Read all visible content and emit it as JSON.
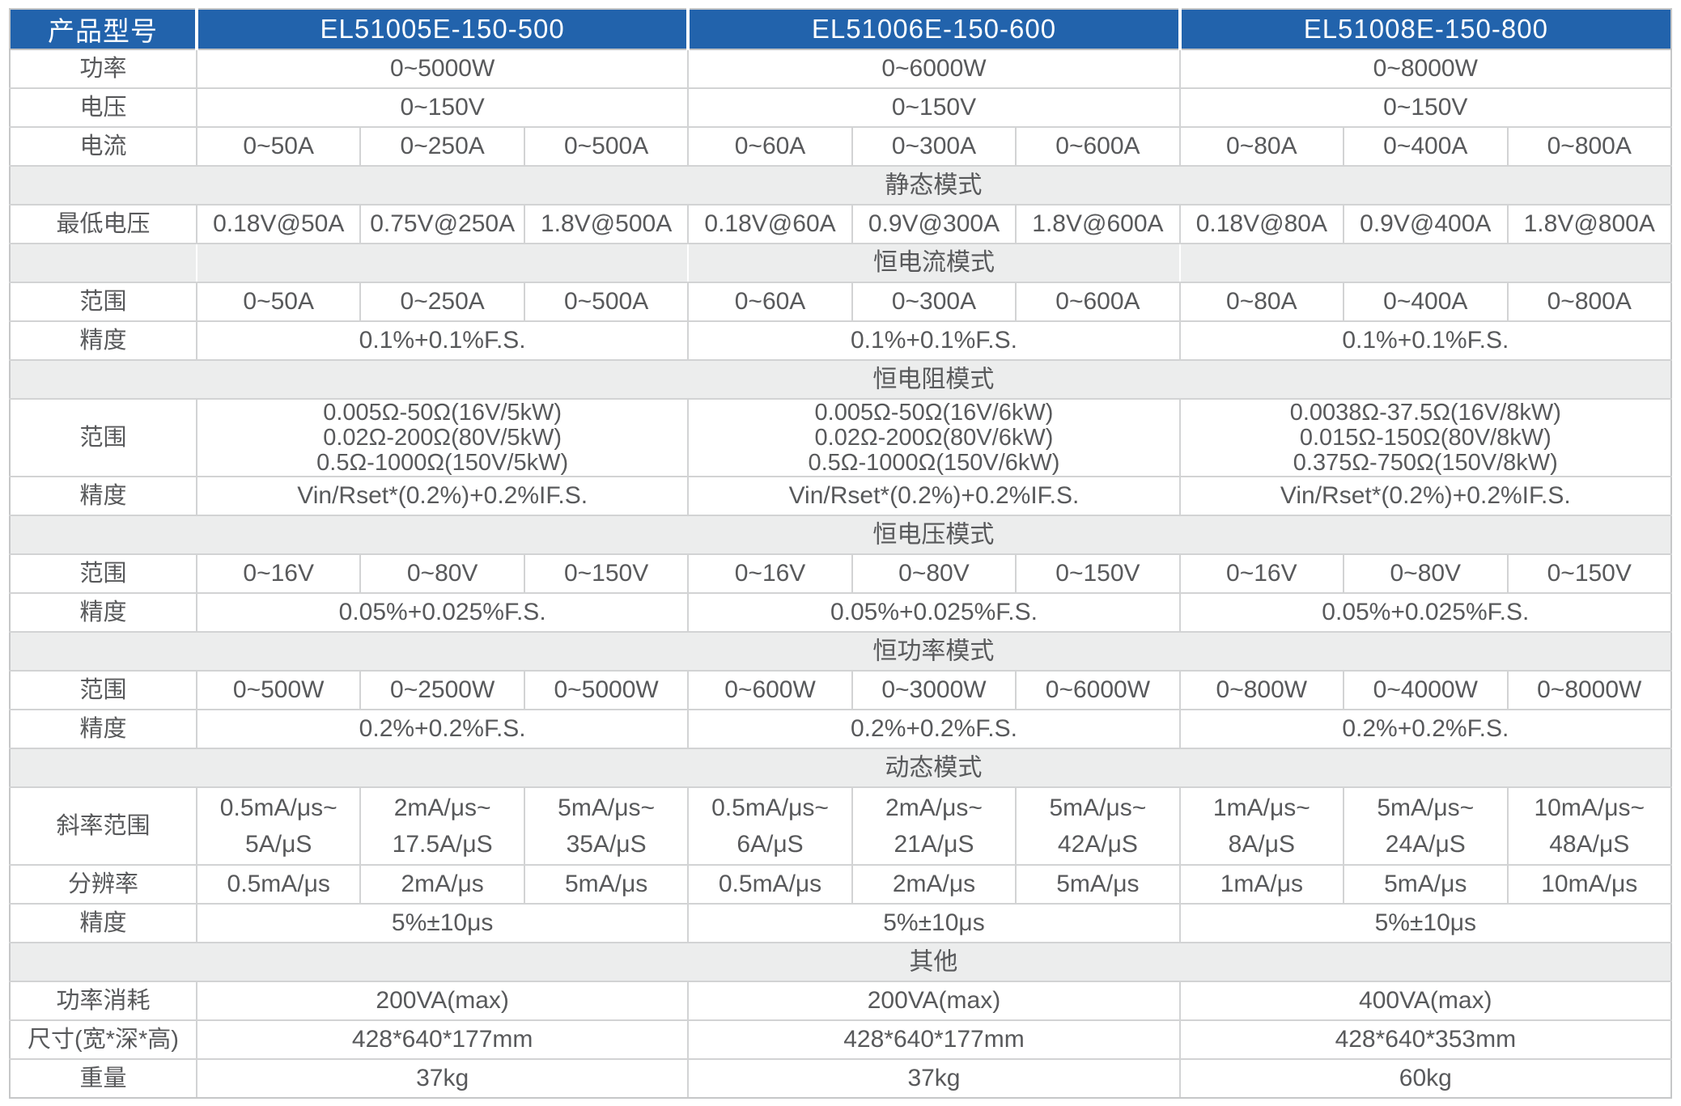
{
  "table": {
    "corner_label": "产品型号",
    "models": [
      "EL51005E-150-500",
      "EL51006E-150-600",
      "EL51008E-150-800"
    ],
    "colors": {
      "header_bg": "#2263AC",
      "header_text": "#FFFFFF",
      "section_bg": "#ECEDED",
      "body_text": "#58595B",
      "grid_line": "#D2D3D4"
    },
    "rows": [
      {
        "type": "spec",
        "label": "功率",
        "cells": [
          {
            "text": "0~5000W",
            "span": 3
          },
          {
            "text": "0~6000W",
            "span": 3
          },
          {
            "text": "0~8000W",
            "span": 3
          }
        ]
      },
      {
        "type": "spec",
        "label": "电压",
        "cells": [
          {
            "text": "0~150V",
            "span": 3
          },
          {
            "text": "0~150V",
            "span": 3
          },
          {
            "text": "0~150V",
            "span": 3
          }
        ]
      },
      {
        "type": "spec",
        "label": "电流",
        "cells": [
          {
            "text": "0~50A",
            "span": 1
          },
          {
            "text": "0~250A",
            "span": 1
          },
          {
            "text": "0~500A",
            "span": 1
          },
          {
            "text": "0~60A",
            "span": 1
          },
          {
            "text": "0~300A",
            "span": 1
          },
          {
            "text": "0~600A",
            "span": 1
          },
          {
            "text": "0~80A",
            "span": 1
          },
          {
            "text": "0~400A",
            "span": 1
          },
          {
            "text": "0~800A",
            "span": 1
          }
        ]
      },
      {
        "type": "section",
        "title": "静态模式",
        "merged": true
      },
      {
        "type": "spec",
        "label": "最低电压",
        "cells": [
          {
            "text": "0.18V@50A",
            "span": 1
          },
          {
            "text": "0.75V@250A",
            "span": 1
          },
          {
            "text": "1.8V@500A",
            "span": 1
          },
          {
            "text": "0.18V@60A",
            "span": 1
          },
          {
            "text": "0.9V@300A",
            "span": 1
          },
          {
            "text": "1.8V@600A",
            "span": 1
          },
          {
            "text": "0.18V@80A",
            "span": 1
          },
          {
            "text": "0.9V@400A",
            "span": 1
          },
          {
            "text": "1.8V@800A",
            "span": 1
          }
        ]
      },
      {
        "type": "section",
        "title": "恒电流模式",
        "merged": false
      },
      {
        "type": "spec",
        "label": "范围",
        "cells": [
          {
            "text": "0~50A",
            "span": 1
          },
          {
            "text": "0~250A",
            "span": 1
          },
          {
            "text": "0~500A",
            "span": 1
          },
          {
            "text": "0~60A",
            "span": 1
          },
          {
            "text": "0~300A",
            "span": 1
          },
          {
            "text": "0~600A",
            "span": 1
          },
          {
            "text": "0~80A",
            "span": 1
          },
          {
            "text": "0~400A",
            "span": 1
          },
          {
            "text": "0~800A",
            "span": 1
          }
        ]
      },
      {
        "type": "spec",
        "label": "精度",
        "cells": [
          {
            "text": "0.1%+0.1%F.S.",
            "span": 3
          },
          {
            "text": "0.1%+0.1%F.S.",
            "span": 3
          },
          {
            "text": "0.1%+0.1%F.S.",
            "span": 3
          }
        ]
      },
      {
        "type": "section",
        "title": "恒电阻模式",
        "merged": true
      },
      {
        "type": "spec",
        "label": "范围",
        "size": "l3",
        "cells": [
          {
            "text": "0.005Ω-50Ω(16V/5kW)\n0.02Ω-200Ω(80V/5kW)\n0.5Ω-1000Ω(150V/5kW)",
            "span": 3
          },
          {
            "text": "0.005Ω-50Ω(16V/6kW)\n0.02Ω-200Ω(80V/6kW)\n0.5Ω-1000Ω(150V/6kW)",
            "span": 3
          },
          {
            "text": "0.0038Ω-37.5Ω(16V/8kW)\n0.015Ω-150Ω(80V/8kW)\n0.375Ω-750Ω(150V/8kW)",
            "span": 3
          }
        ]
      },
      {
        "type": "spec",
        "label": "精度",
        "cells": [
          {
            "text": "Vin/Rset*(0.2%)+0.2%IF.S.",
            "span": 3
          },
          {
            "text": "Vin/Rset*(0.2%)+0.2%IF.S.",
            "span": 3
          },
          {
            "text": "Vin/Rset*(0.2%)+0.2%IF.S.",
            "span": 3
          }
        ]
      },
      {
        "type": "section",
        "title": "恒电压模式",
        "merged": true
      },
      {
        "type": "spec",
        "label": "范围",
        "cells": [
          {
            "text": "0~16V",
            "span": 1
          },
          {
            "text": "0~80V",
            "span": 1
          },
          {
            "text": "0~150V",
            "span": 1
          },
          {
            "text": "0~16V",
            "span": 1
          },
          {
            "text": "0~80V",
            "span": 1
          },
          {
            "text": "0~150V",
            "span": 1
          },
          {
            "text": "0~16V",
            "span": 1
          },
          {
            "text": "0~80V",
            "span": 1
          },
          {
            "text": "0~150V",
            "span": 1
          }
        ]
      },
      {
        "type": "spec",
        "label": "精度",
        "cells": [
          {
            "text": "0.05%+0.025%F.S.",
            "span": 3
          },
          {
            "text": "0.05%+0.025%F.S.",
            "span": 3
          },
          {
            "text": "0.05%+0.025%F.S.",
            "span": 3
          }
        ]
      },
      {
        "type": "section",
        "title": "恒功率模式",
        "merged": true
      },
      {
        "type": "spec",
        "label": "范围",
        "cells": [
          {
            "text": "0~500W",
            "span": 1
          },
          {
            "text": "0~2500W",
            "span": 1
          },
          {
            "text": "0~5000W",
            "span": 1
          },
          {
            "text": "0~600W",
            "span": 1
          },
          {
            "text": "0~3000W",
            "span": 1
          },
          {
            "text": "0~6000W",
            "span": 1
          },
          {
            "text": "0~800W",
            "span": 1
          },
          {
            "text": "0~4000W",
            "span": 1
          },
          {
            "text": "0~8000W",
            "span": 1
          }
        ]
      },
      {
        "type": "spec",
        "label": "精度",
        "cells": [
          {
            "text": "0.2%+0.2%F.S.",
            "span": 3
          },
          {
            "text": "0.2%+0.2%F.S.",
            "span": 3
          },
          {
            "text": "0.2%+0.2%F.S.",
            "span": 3
          }
        ]
      },
      {
        "type": "section",
        "title": "动态模式",
        "merged": true
      },
      {
        "type": "spec",
        "label": "斜率范围",
        "size": "l2",
        "cells": [
          {
            "text": "0.5mA/μs~\n5A/μS",
            "span": 1
          },
          {
            "text": "2mA/μs~\n17.5A/μS",
            "span": 1
          },
          {
            "text": "5mA/μs~\n35A/μS",
            "span": 1
          },
          {
            "text": "0.5mA/μs~\n6A/μS",
            "span": 1
          },
          {
            "text": "2mA/μs~\n21A/μS",
            "span": 1
          },
          {
            "text": "5mA/μs~\n42A/μS",
            "span": 1
          },
          {
            "text": "1mA/μs~\n8A/μS",
            "span": 1
          },
          {
            "text": "5mA/μs~\n24A/μS",
            "span": 1
          },
          {
            "text": "10mA/μs~\n48A/μS",
            "span": 1
          }
        ]
      },
      {
        "type": "spec",
        "label": "分辨率",
        "cells": [
          {
            "text": "0.5mA/μs",
            "span": 1
          },
          {
            "text": "2mA/μs",
            "span": 1
          },
          {
            "text": "5mA/μs",
            "span": 1
          },
          {
            "text": "0.5mA/μs",
            "span": 1
          },
          {
            "text": "2mA/μs",
            "span": 1
          },
          {
            "text": "5mA/μs",
            "span": 1
          },
          {
            "text": "1mA/μs",
            "span": 1
          },
          {
            "text": "5mA/μs",
            "span": 1
          },
          {
            "text": "10mA/μs",
            "span": 1
          }
        ]
      },
      {
        "type": "spec",
        "label": "精度",
        "cells": [
          {
            "text": "5%±10μs",
            "span": 3
          },
          {
            "text": "5%±10μs",
            "span": 3
          },
          {
            "text": "5%±10μs",
            "span": 3
          }
        ]
      },
      {
        "type": "section",
        "title": "其他",
        "merged": true
      },
      {
        "type": "spec",
        "label": "功率消耗",
        "cells": [
          {
            "text": "200VA(max)",
            "span": 3
          },
          {
            "text": "200VA(max)",
            "span": 3
          },
          {
            "text": "400VA(max)",
            "span": 3
          }
        ]
      },
      {
        "type": "spec",
        "label": "尺寸(宽*深*高)",
        "cells": [
          {
            "text": "428*640*177mm",
            "span": 3
          },
          {
            "text": "428*640*177mm",
            "span": 3
          },
          {
            "text": "428*640*353mm",
            "span": 3
          }
        ]
      },
      {
        "type": "spec",
        "label": "重量",
        "cells": [
          {
            "text": "37kg",
            "span": 3
          },
          {
            "text": "37kg",
            "span": 3
          },
          {
            "text": "60kg",
            "span": 3
          }
        ]
      }
    ]
  }
}
